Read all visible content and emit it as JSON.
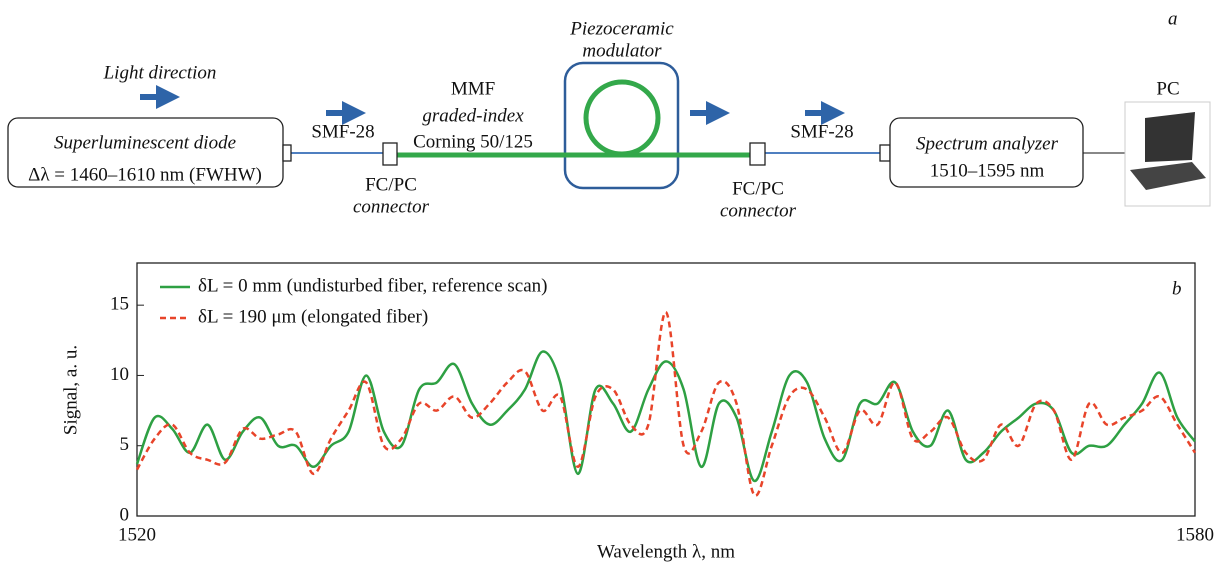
{
  "diagram": {
    "panel_label": "a",
    "light_direction": "Light direction",
    "source": {
      "title": "Superluminescent diode",
      "range": "Δλ = 1460–1610 nm (FWHW)"
    },
    "fiber_in": "SMF-28",
    "fiber_out": "SMF-28",
    "connector_in": {
      "type": "FC/PC",
      "label": "connector"
    },
    "connector_out": {
      "type": "FC/PC",
      "label": "connector"
    },
    "mmf": {
      "name": "MMF",
      "kind": "graded-index",
      "spec": "Corning 50/125"
    },
    "modulator": {
      "line1": "Piezoceramic",
      "line2": "modulator"
    },
    "analyzer": {
      "title": "Spectrum analyzer",
      "range": "1510–1595 nm"
    },
    "pc": "PC"
  },
  "chart_data": {
    "type": "line",
    "panel_label": "b",
    "xlabel": "Wavelength λ, nm",
    "ylabel": "Signal, a. u.",
    "x": [
      1520,
      1521,
      1522,
      1523,
      1524,
      1525,
      1526,
      1527,
      1528,
      1529,
      1530,
      1531,
      1532,
      1533,
      1534,
      1535,
      1536,
      1537,
      1538,
      1539,
      1540,
      1541,
      1542,
      1543,
      1544,
      1545,
      1546,
      1547,
      1548,
      1549,
      1550,
      1551,
      1552,
      1553,
      1554,
      1555,
      1556,
      1557,
      1558,
      1559,
      1560,
      1561,
      1562,
      1563,
      1564,
      1565,
      1566,
      1567,
      1568,
      1569,
      1570,
      1571,
      1572,
      1573,
      1574,
      1575,
      1576,
      1577,
      1578,
      1579,
      1580
    ],
    "xlim": [
      1520,
      1580
    ],
    "xticks": [
      1520,
      1580
    ],
    "ylim": [
      0,
      18
    ],
    "yticks": [
      0,
      5,
      10,
      15
    ],
    "legend": "upper left",
    "series": [
      {
        "name": "δL = 0 mm (undisturbed fiber, reference scan)",
        "color": "#2ea043",
        "style": "solid",
        "values": [
          3.7,
          7.0,
          6.2,
          4.5,
          6.5,
          4.0,
          6.0,
          7.0,
          5.0,
          5.0,
          3.5,
          5.0,
          6.0,
          10.0,
          6.0,
          5.0,
          9.0,
          9.5,
          10.8,
          8.0,
          6.5,
          7.5,
          9.0,
          11.7,
          9.5,
          3.0,
          9.0,
          8.0,
          6.0,
          9.0,
          11.0,
          9.0,
          3.5,
          8.0,
          7.0,
          2.5,
          6.0,
          10.0,
          9.5,
          5.5,
          4.0,
          8.0,
          8.0,
          9.5,
          6.0,
          5.0,
          7.5,
          4.0,
          4.5,
          6.0,
          7.0,
          8.0,
          7.5,
          4.5,
          5.0,
          5.0,
          6.5,
          8.0,
          10.2,
          7.0,
          5.3
        ]
      },
      {
        "name": "δL = 190 μm (elongated fiber)",
        "color": "#e8442a",
        "style": "dashed",
        "values": [
          3.3,
          5.5,
          6.5,
          4.5,
          4.0,
          3.8,
          6.2,
          5.5,
          5.8,
          6.0,
          3.0,
          5.5,
          7.5,
          9.5,
          5.0,
          5.5,
          8.0,
          7.5,
          8.5,
          7.0,
          8.0,
          9.5,
          10.3,
          7.5,
          8.5,
          3.5,
          8.5,
          9.0,
          6.5,
          6.5,
          14.5,
          5.0,
          6.0,
          9.5,
          8.0,
          1.5,
          5.0,
          8.5,
          9.0,
          7.0,
          4.5,
          7.5,
          6.5,
          9.5,
          5.5,
          6.0,
          7.0,
          4.5,
          4.0,
          6.5,
          5.0,
          8.0,
          7.5,
          4.0,
          8.0,
          6.5,
          7.0,
          7.5,
          8.5,
          6.5,
          4.5
        ]
      }
    ]
  }
}
